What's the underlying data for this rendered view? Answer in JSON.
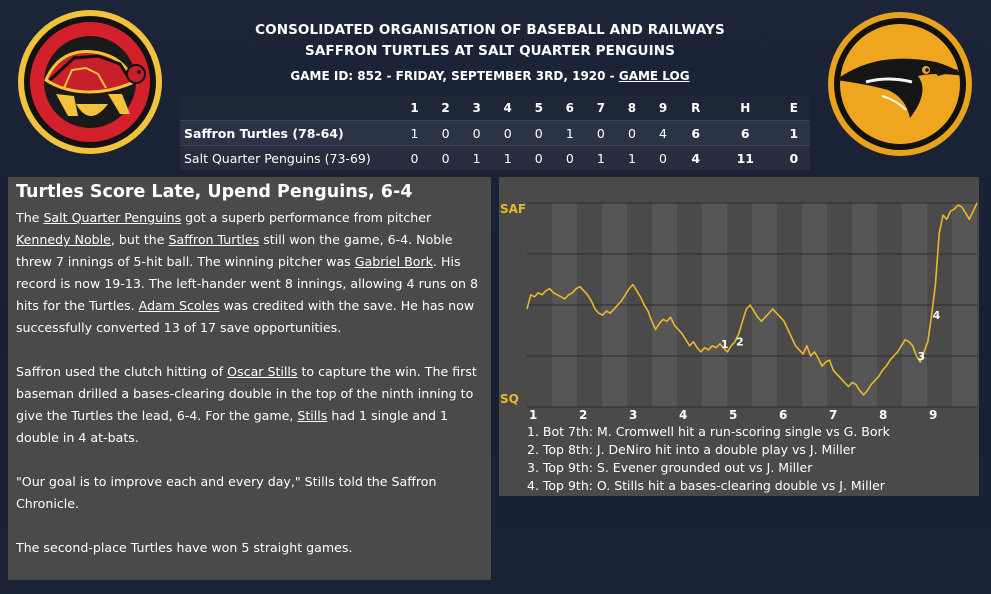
{
  "header": {
    "league": "CONSOLIDATED ORGANISATION OF BASEBALL AND RAILWAYS",
    "matchup": "SAFFRON TURTLES AT SALT QUARTER PENGUINS",
    "game_info": "GAME ID: 852 - FRIDAY, SEPTEMBER 3RD, 1920 - ",
    "game_log_link": "GAME LOG"
  },
  "linescore": {
    "columns": [
      "1",
      "2",
      "3",
      "4",
      "5",
      "6",
      "7",
      "8",
      "9",
      "R",
      "H",
      "E"
    ],
    "rows": [
      {
        "team": "Saffron Turtles (78-64)",
        "values": [
          "1",
          "0",
          "0",
          "0",
          "0",
          "1",
          "0",
          "0",
          "4",
          "6",
          "6",
          "1"
        ]
      },
      {
        "team": "Salt Quarter Penguins (73-69)",
        "values": [
          "0",
          "0",
          "1",
          "1",
          "0",
          "0",
          "1",
          "1",
          "0",
          "4",
          "11",
          "0"
        ]
      }
    ]
  },
  "story": {
    "headline": "Turtles Score Late, Upend Penguins, 6-4",
    "p1": {
      "t1": "The ",
      "l1": "Salt Quarter Penguins",
      "t2": " got a superb performance from pitcher ",
      "l2": "Kennedy Noble",
      "t3": ", but the ",
      "l3": "Saffron Turtles",
      "t4": " still won the game, 6-4. Noble threw 7 innings of 5-hit ball. The winning pitcher was ",
      "l4": "Gabriel Bork",
      "t5": ". His record is now 19-13. The left-hander went 8 innings, allowing 4 runs on 8 hits for the Turtles. ",
      "l5": "Adam Scoles",
      "t6": " was credited with the save. He has now successfully converted 13 of 17 save opportunities."
    },
    "p2": {
      "t1": "Saffron used the clutch hitting of ",
      "l1": "Oscar Stills",
      "t2": " to capture the win. The first baseman drilled a bases-clearing double in the top of the ninth inning to give the Turtles the lead, 6-4. For the game, ",
      "l2": "Stills",
      "t3": " had 1 single and 1 double in 4 at-bats."
    },
    "p3": "\"Our goal is to improve each and every day,\" Stills told the Saffron Chronicle.",
    "p4": "The second-place Turtles have won 5 straight games."
  },
  "chart_data": {
    "type": "line",
    "top_label": "SAF",
    "bottom_label": "SQ",
    "x_tick_labels": [
      "1",
      "2",
      "3",
      "4",
      "5",
      "6",
      "7",
      "8",
      "9"
    ],
    "ylim": [
      0,
      1
    ],
    "line_color": "#e8b828",
    "y": [
      0.48,
      0.55,
      0.54,
      0.56,
      0.55,
      0.57,
      0.58,
      0.56,
      0.55,
      0.54,
      0.53,
      0.55,
      0.56,
      0.58,
      0.59,
      0.57,
      0.55,
      0.52,
      0.48,
      0.46,
      0.45,
      0.47,
      0.46,
      0.48,
      0.5,
      0.52,
      0.55,
      0.58,
      0.6,
      0.57,
      0.54,
      0.5,
      0.47,
      0.42,
      0.38,
      0.41,
      0.43,
      0.42,
      0.44,
      0.4,
      0.38,
      0.36,
      0.33,
      0.3,
      0.32,
      0.29,
      0.27,
      0.29,
      0.28,
      0.3,
      0.29,
      0.31,
      0.29,
      0.27,
      0.3,
      0.32,
      0.36,
      0.42,
      0.48,
      0.5,
      0.47,
      0.44,
      0.42,
      0.44,
      0.46,
      0.48,
      0.46,
      0.44,
      0.42,
      0.38,
      0.34,
      0.3,
      0.28,
      0.26,
      0.3,
      0.25,
      0.27,
      0.24,
      0.2,
      0.22,
      0.23,
      0.18,
      0.16,
      0.14,
      0.12,
      0.1,
      0.12,
      0.11,
      0.08,
      0.06,
      0.08,
      0.11,
      0.13,
      0.15,
      0.18,
      0.2,
      0.23,
      0.25,
      0.27,
      0.3,
      0.33,
      0.32,
      0.3,
      0.25,
      0.22,
      0.27,
      0.32,
      0.45,
      0.6,
      0.85,
      0.94,
      0.92,
      0.96,
      0.97,
      0.99,
      0.98,
      0.95,
      0.92,
      0.96,
      1.0
    ],
    "event_markers": [
      {
        "label": "1",
        "index": 51
      },
      {
        "label": "2",
        "index": 55
      },
      {
        "label": "3",
        "index": 103
      },
      {
        "label": "4",
        "index": 107
      }
    ],
    "events": [
      "1. Bot 7th: M. Cromwell hit a run-scoring single vs G. Bork",
      "2. Top 8th: J. DeNiro hit into a double play vs J. Miller",
      "3. Top 9th: S. Evener grounded out vs J. Miller",
      "4. Top 9th: O. Stills hit a bases-clearing double vs J. Miller"
    ]
  }
}
